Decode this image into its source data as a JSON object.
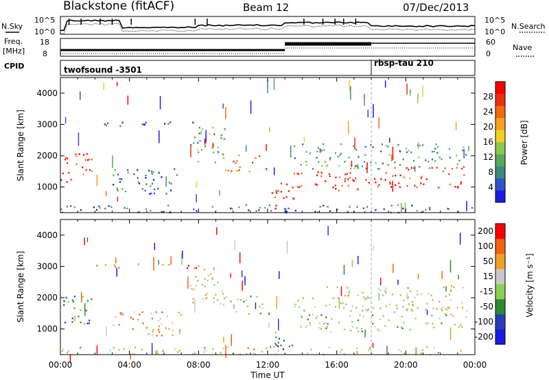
{
  "header": {
    "station": "Blackstone (fitACF)",
    "beam": "Beam 12",
    "date": "07/Dec/2013"
  },
  "noise_panel": {
    "left_label": "N.Sky",
    "right_label": "N.Search",
    "left_ticks": [
      "10^5",
      "10^0"
    ],
    "right_ticks": [
      "10^5",
      "10^0"
    ]
  },
  "freq_panel": {
    "left_label_1": "Freq.",
    "left_label_2": "[MHz]",
    "left_ticks": [
      "18",
      "8"
    ],
    "right_label": "Nave",
    "right_ticks": [
      "60",
      "0"
    ]
  },
  "cpid_panel": {
    "label": "CPID",
    "modes": [
      {
        "name": "twofsound -3501",
        "start_hour": 0
      },
      {
        "name": "rbsp-tau 210",
        "start_hour": 18
      }
    ]
  },
  "chart_data": [
    {
      "type": "heatmap",
      "name": "power",
      "ylabel": "Slant Range [km]",
      "xlabel": "",
      "xlim": [
        0,
        24
      ],
      "ylim": [
        180,
        4500
      ],
      "yticks": [
        1000,
        2000,
        3000,
        4000
      ],
      "xticks": [
        "00:00",
        "04:00",
        "08:00",
        "12:00",
        "16:00",
        "20:00",
        "00:00"
      ],
      "colorbar": {
        "label": "Power [dB]",
        "ticks": [
          "4",
          "8",
          "12",
          "16",
          "20",
          "24",
          "28"
        ],
        "colors": [
          "#1a1ae6",
          "#2d55c8",
          "#3d8a7a",
          "#58a858",
          "#8cc850",
          "#f0d020",
          "#f5a020",
          "#f06a10",
          "#e83010",
          "#ff0000"
        ]
      },
      "regions": [
        {
          "t0": 0.0,
          "t1": 1.8,
          "r0": 1150,
          "r1": 2100,
          "level": 0.85
        },
        {
          "t0": 3.0,
          "t1": 7.0,
          "r0": 800,
          "r1": 1600,
          "level": 0.2
        },
        {
          "t0": 7.5,
          "t1": 9.5,
          "r0": 1800,
          "r1": 3000,
          "level": 0.35
        },
        {
          "t0": 9.5,
          "t1": 12.2,
          "r0": 1500,
          "r1": 2100,
          "level": 0.75
        },
        {
          "t0": 12.2,
          "t1": 13.5,
          "r0": 300,
          "r1": 1200,
          "level": 0.95
        },
        {
          "t0": 13.5,
          "t1": 19.0,
          "r0": 900,
          "r1": 1500,
          "level": 0.9
        },
        {
          "t0": 19.0,
          "t1": 23.5,
          "r0": 1000,
          "r1": 1700,
          "level": 0.85
        },
        {
          "t0": 13.5,
          "t1": 23.5,
          "r0": 1600,
          "r1": 2400,
          "level": 0.3
        },
        {
          "t0": 2.0,
          "t1": 8.0,
          "r0": 2950,
          "r1": 3100,
          "level": 0.15
        },
        {
          "t0": 0.0,
          "t1": 24.0,
          "r0": 200,
          "r1": 450,
          "level": 0.2
        }
      ]
    },
    {
      "type": "heatmap",
      "name": "velocity",
      "ylabel": "Slant Range [km]",
      "xlabel": "Time UT",
      "xlim": [
        0,
        24
      ],
      "ylim": [
        180,
        4500
      ],
      "yticks": [
        1000,
        2000,
        3000,
        4000
      ],
      "xticks": [
        "00:00",
        "04:00",
        "08:00",
        "12:00",
        "16:00",
        "20:00",
        "00:00"
      ],
      "colorbar": {
        "label": "Velocity [m s⁻¹]",
        "ticks": [
          "200",
          "100",
          "50",
          "15",
          "-15",
          "-50",
          "-100",
          "-200"
        ],
        "colors": [
          "#1a1ae6",
          "#2a3cb4",
          "#2e8a2e",
          "#8cd050",
          "#c8c8c8",
          "#f0a020",
          "#f06410",
          "#ff0000"
        ]
      },
      "regions": [
        {
          "t0": 0.0,
          "t1": 1.8,
          "r0": 1150,
          "r1": 2100,
          "level": 0.3
        },
        {
          "t0": 3.0,
          "t1": 7.0,
          "r0": 800,
          "r1": 1600,
          "level": 0.7
        },
        {
          "t0": 7.5,
          "t1": 9.5,
          "r0": 1800,
          "r1": 3000,
          "level": 0.6
        },
        {
          "t0": 9.5,
          "t1": 12.2,
          "r0": 1500,
          "r1": 2100,
          "level": 0.45
        },
        {
          "t0": 12.2,
          "t1": 13.5,
          "r0": 300,
          "r1": 1200,
          "level": 0.25
        },
        {
          "t0": 13.5,
          "t1": 19.0,
          "r0": 900,
          "r1": 1500,
          "level": 0.5
        },
        {
          "t0": 19.0,
          "t1": 23.5,
          "r0": 1000,
          "r1": 1700,
          "level": 0.5
        },
        {
          "t0": 13.5,
          "t1": 23.5,
          "r0": 1600,
          "r1": 2400,
          "level": 0.55
        },
        {
          "t0": 2.0,
          "t1": 8.0,
          "r0": 2950,
          "r1": 3100,
          "level": 0.8
        },
        {
          "t0": 0.0,
          "t1": 24.0,
          "r0": 200,
          "r1": 450,
          "level": 0.6
        }
      ]
    }
  ]
}
